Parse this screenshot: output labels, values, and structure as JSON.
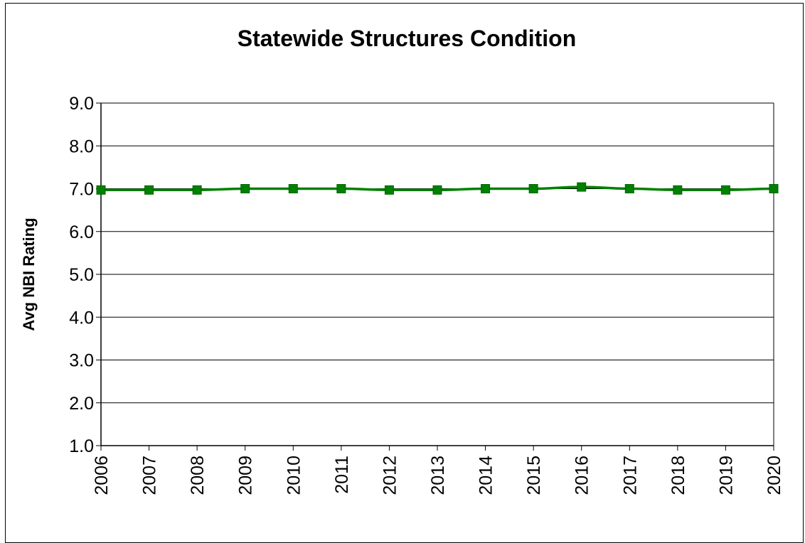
{
  "chart_data": {
    "type": "line",
    "title": "Statewide Structures Condition",
    "xlabel": "",
    "ylabel": "Avg NBI Rating",
    "ylim": [
      1.0,
      9.0
    ],
    "yticks": [
      "1.0",
      "2.0",
      "3.0",
      "4.0",
      "5.0",
      "6.0",
      "7.0",
      "8.0",
      "9.0"
    ],
    "categories": [
      "2006",
      "2007",
      "2008",
      "2009",
      "2010",
      "2011",
      "2012",
      "2013",
      "2014",
      "2015",
      "2016",
      "2017",
      "2018",
      "2019",
      "2020"
    ],
    "series": [
      {
        "values": [
          6.97,
          6.97,
          6.97,
          7.0,
          7.0,
          7.0,
          6.97,
          6.97,
          7.0,
          7.0,
          7.04,
          7.0,
          6.97,
          6.97,
          7.0
        ],
        "color": "#008000",
        "marker": "square"
      }
    ],
    "grid": true,
    "legend": "none"
  }
}
